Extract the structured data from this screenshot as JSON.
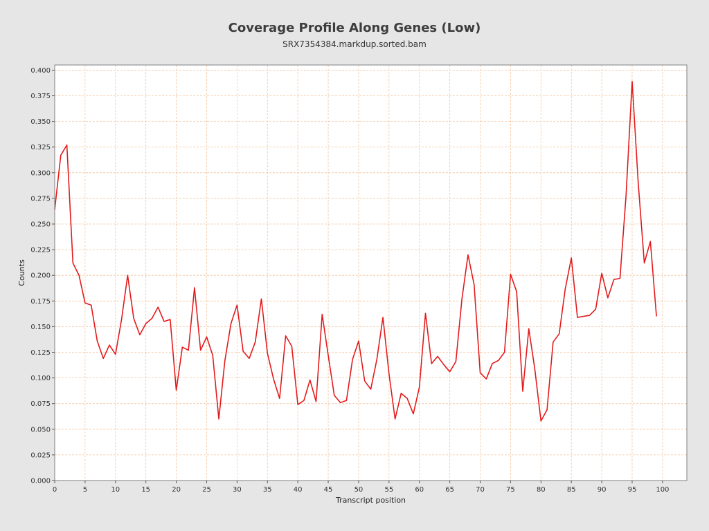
{
  "chart_data": {
    "type": "line",
    "title": "Coverage Profile Along Genes (Low)",
    "subtitle": "SRX7354384.markdup.sorted.bam",
    "xlabel": "Transcript position",
    "ylabel": "Counts",
    "xlim": [
      0,
      104
    ],
    "ylim": [
      0,
      0.405
    ],
    "x_ticks": [
      0,
      5,
      10,
      15,
      20,
      25,
      30,
      35,
      40,
      45,
      50,
      55,
      60,
      65,
      70,
      75,
      80,
      85,
      90,
      95,
      100
    ],
    "y_ticks": [
      0.0,
      0.025,
      0.05,
      0.075,
      0.1,
      0.125,
      0.15,
      0.175,
      0.2,
      0.225,
      0.25,
      0.275,
      0.3,
      0.325,
      0.35,
      0.375,
      0.4
    ],
    "y_tick_labels": [
      "0.000",
      "0.025",
      "0.050",
      "0.075",
      "0.100",
      "0.125",
      "0.150",
      "0.175",
      "0.200",
      "0.225",
      "0.250",
      "0.275",
      "0.300",
      "0.325",
      "0.350",
      "0.375",
      "0.400"
    ],
    "grid": true,
    "series": [
      {
        "color": "#e31a1c",
        "x": [
          0,
          1,
          2,
          3,
          4,
          5,
          6,
          7,
          8,
          9,
          10,
          11,
          12,
          13,
          14,
          15,
          16,
          17,
          18,
          19,
          20,
          21,
          22,
          23,
          24,
          25,
          26,
          27,
          28,
          29,
          30,
          31,
          32,
          33,
          34,
          35,
          36,
          37,
          38,
          39,
          40,
          41,
          42,
          43,
          44,
          45,
          46,
          47,
          48,
          49,
          50,
          51,
          52,
          53,
          54,
          55,
          56,
          57,
          58,
          59,
          60,
          61,
          62,
          63,
          64,
          65,
          66,
          67,
          68,
          69,
          70,
          71,
          72,
          73,
          74,
          75,
          76,
          77,
          78,
          79,
          80,
          81,
          82,
          83,
          84,
          85,
          86,
          87,
          88,
          89,
          90,
          91,
          92,
          93,
          94,
          95,
          96,
          97,
          98,
          99
        ],
        "values": [
          0.264,
          0.317,
          0.327,
          0.212,
          0.2,
          0.173,
          0.171,
          0.136,
          0.119,
          0.132,
          0.123,
          0.157,
          0.2,
          0.158,
          0.142,
          0.153,
          0.158,
          0.169,
          0.155,
          0.157,
          0.088,
          0.13,
          0.127,
          0.188,
          0.127,
          0.14,
          0.122,
          0.06,
          0.117,
          0.153,
          0.171,
          0.126,
          0.119,
          0.135,
          0.177,
          0.124,
          0.099,
          0.08,
          0.141,
          0.131,
          0.074,
          0.078,
          0.098,
          0.077,
          0.162,
          0.122,
          0.083,
          0.076,
          0.078,
          0.118,
          0.136,
          0.097,
          0.089,
          0.118,
          0.159,
          0.104,
          0.06,
          0.085,
          0.08,
          0.065,
          0.091,
          0.163,
          0.114,
          0.121,
          0.113,
          0.106,
          0.116,
          0.177,
          0.22,
          0.191,
          0.105,
          0.099,
          0.114,
          0.117,
          0.125,
          0.201,
          0.184,
          0.087,
          0.148,
          0.108,
          0.058,
          0.069,
          0.135,
          0.143,
          0.187,
          0.217,
          0.159,
          0.16,
          0.161,
          0.167,
          0.202,
          0.178,
          0.196,
          0.197,
          0.278,
          0.389,
          0.29,
          0.212,
          0.233,
          0.16
        ]
      }
    ]
  },
  "colors": {
    "background": "#e6e6e6",
    "plot_background": "#ffffff",
    "grid": "#f4c49e",
    "line": "#e31a1c"
  }
}
